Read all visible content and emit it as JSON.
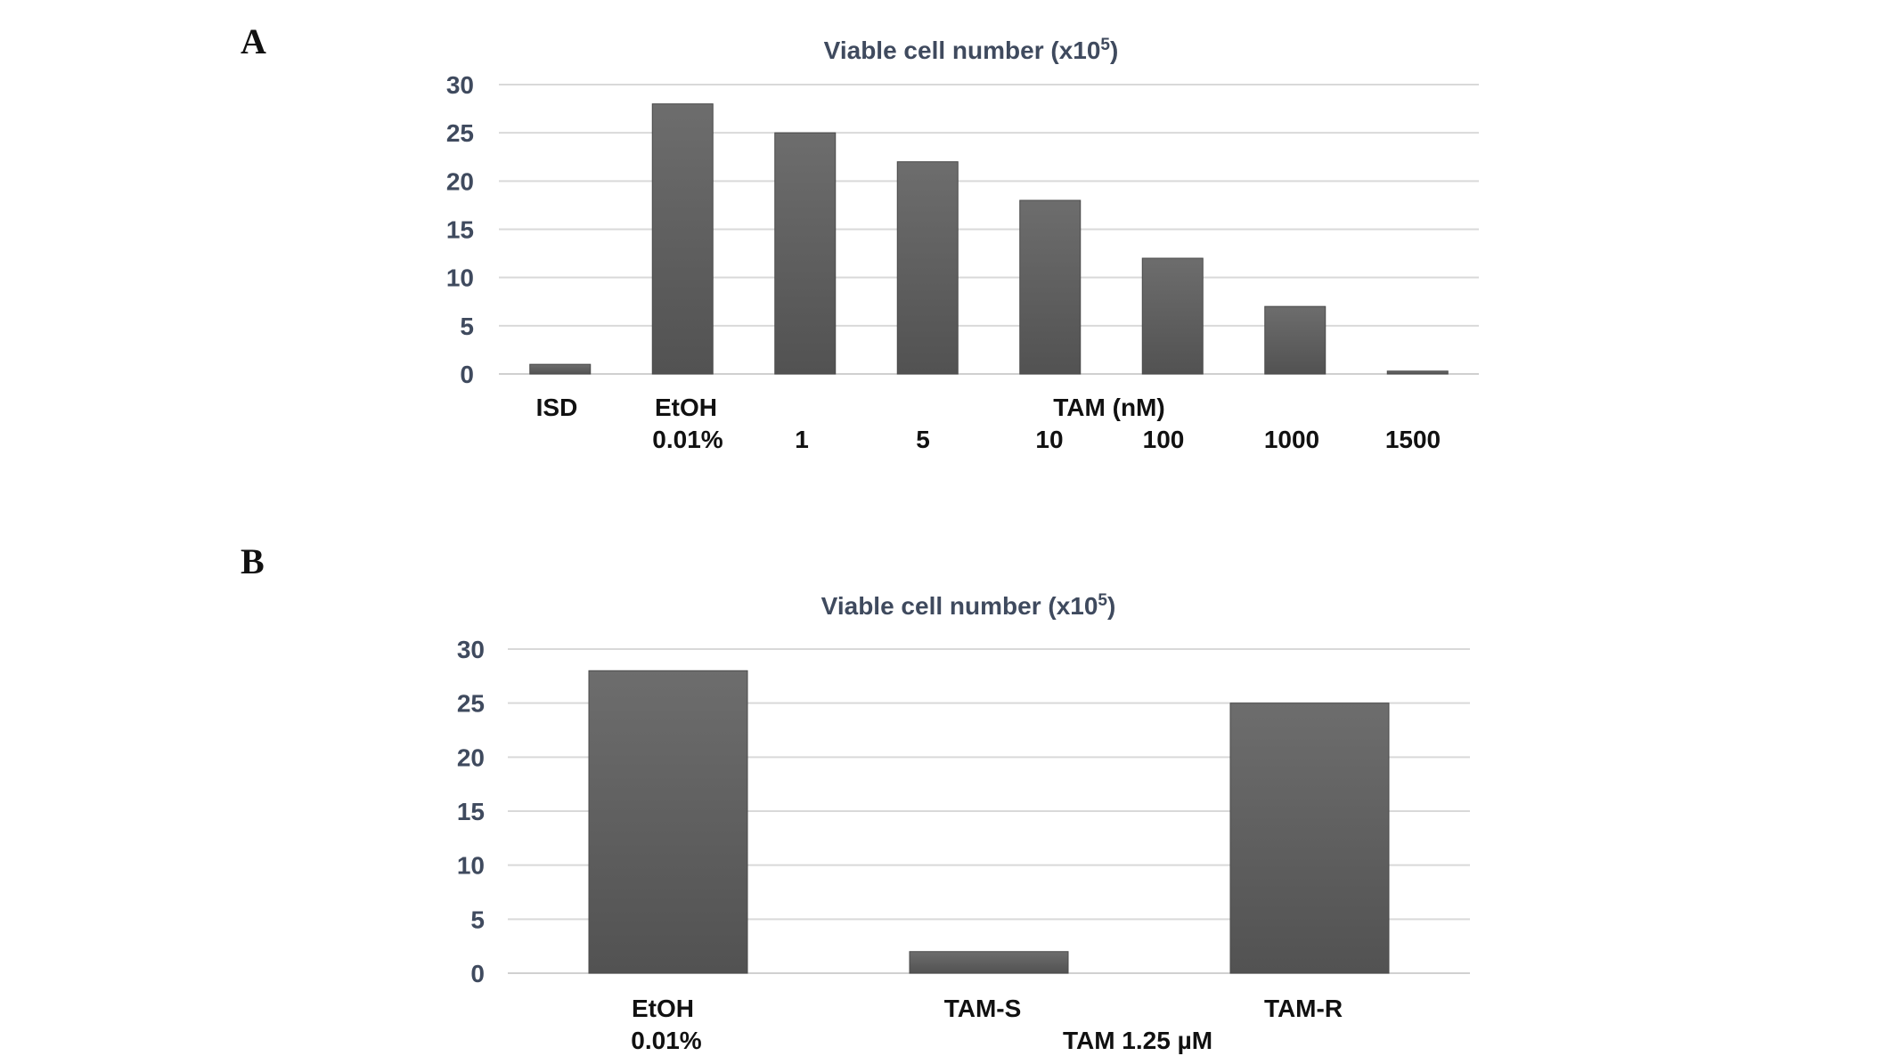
{
  "figure": {
    "panel_letters": [
      "A",
      "B"
    ]
  },
  "chart_data": [
    {
      "type": "bar",
      "panel": "A",
      "title": "Viable cell number (x10",
      "title_sup": "5",
      "title_end": ")",
      "xlabel": "",
      "ylabel": "",
      "ylim": [
        0,
        30
      ],
      "yticks": [
        0,
        5,
        10,
        15,
        20,
        25,
        30
      ],
      "grid": true,
      "categories": [
        "ISD",
        "EtOH 0.01%",
        "1",
        "5",
        "10",
        "100",
        "1000",
        "1500"
      ],
      "values": [
        1,
        28,
        25,
        22,
        18,
        12,
        7,
        0.3
      ],
      "label_rows": [
        [
          "ISD",
          "EtOH",
          "",
          "",
          "TAM (nM)",
          "",
          "",
          ""
        ],
        [
          "",
          "0.01%",
          "1",
          "5",
          "10",
          "100",
          "1000",
          "1500"
        ]
      ],
      "colors": {
        "bar": "#606060"
      }
    },
    {
      "type": "bar",
      "panel": "B",
      "title": "Viable cell number (x10",
      "title_sup": "5",
      "title_end": ")",
      "xlabel": "",
      "ylabel": "",
      "ylim": [
        0,
        30
      ],
      "yticks": [
        0,
        5,
        10,
        15,
        20,
        25,
        30
      ],
      "grid": true,
      "categories": [
        "EtOH 0.01%",
        "TAM-S",
        "TAM-R"
      ],
      "values": [
        28,
        2,
        25
      ],
      "label_rows": [
        [
          "EtOH",
          "TAM-S",
          "TAM-R"
        ],
        [
          "0.01%",
          "TAM 1.25 µM",
          ""
        ]
      ],
      "colors": {
        "bar": "#606060"
      }
    }
  ]
}
